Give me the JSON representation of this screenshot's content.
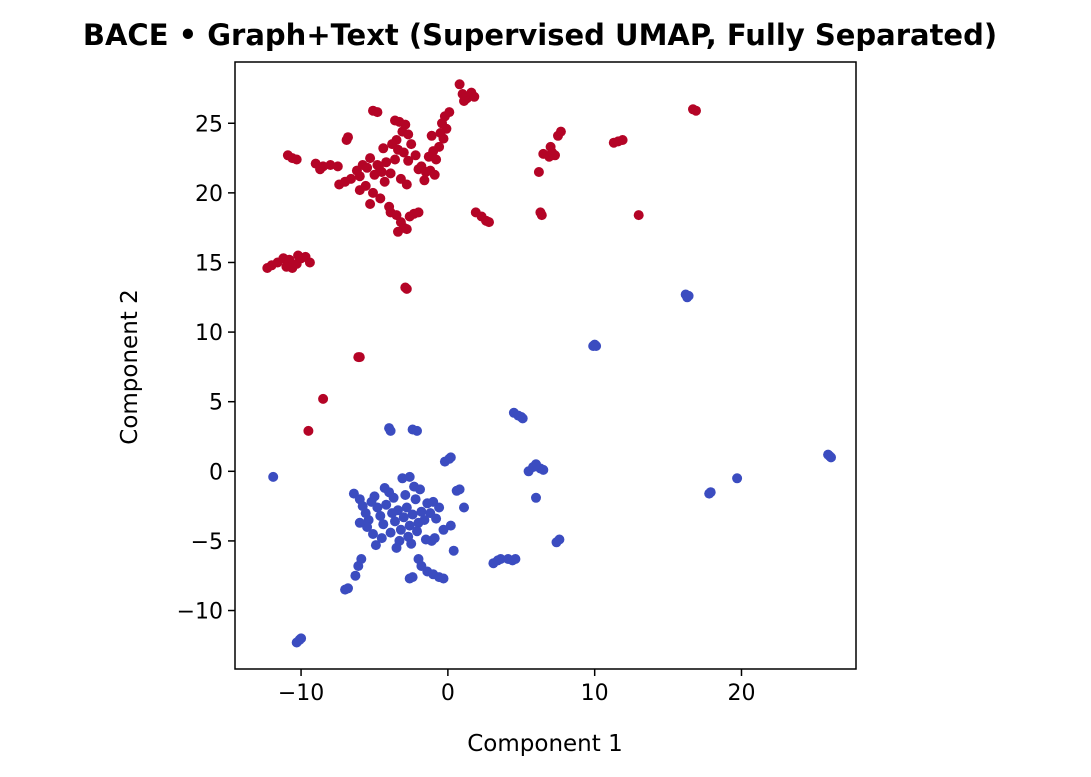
{
  "chart_data": {
    "type": "scatter",
    "title": "BACE • Graph+Text (Supervised UMAP, Fully Separated)",
    "xlabel": "Component 1",
    "ylabel": "Component 2",
    "xlim": [
      -14.5,
      27.8
    ],
    "ylim": [
      -14.2,
      29.4
    ],
    "xticks": [
      -10,
      0,
      10,
      20
    ],
    "xtick_labels": [
      "−10",
      "0",
      "10",
      "20"
    ],
    "yticks": [
      -10,
      -5,
      0,
      5,
      10,
      15,
      20,
      25
    ],
    "ytick_labels": [
      "−10",
      "−5",
      "0",
      "5",
      "10",
      "15",
      "20",
      "25"
    ],
    "grid": false,
    "colormap": "coolwarm",
    "series": [
      {
        "color": "#b40426",
        "points": [
          [
            -12.3,
            14.6
          ],
          [
            -12.0,
            14.8
          ],
          [
            -11.6,
            15.0
          ],
          [
            -11.2,
            15.3
          ],
          [
            -10.8,
            15.2
          ],
          [
            -10.6,
            14.6
          ],
          [
            -10.3,
            14.9
          ],
          [
            -10.0,
            15.3
          ],
          [
            -9.7,
            15.4
          ],
          [
            -9.4,
            15.0
          ],
          [
            -10.2,
            15.5
          ],
          [
            -11.0,
            14.7
          ],
          [
            -10.9,
            22.7
          ],
          [
            -10.6,
            22.5
          ],
          [
            -10.3,
            22.4
          ],
          [
            -9.0,
            22.1
          ],
          [
            -8.5,
            21.9
          ],
          [
            -8.0,
            22.0
          ],
          [
            -7.5,
            21.9
          ],
          [
            -8.7,
            21.7
          ],
          [
            -7.4,
            20.6
          ],
          [
            -7.0,
            20.8
          ],
          [
            -6.6,
            21.0
          ],
          [
            -6.2,
            21.6
          ],
          [
            -5.8,
            22.0
          ],
          [
            -6.0,
            21.2
          ],
          [
            -5.5,
            21.8
          ],
          [
            -5.3,
            22.5
          ],
          [
            -5.0,
            21.3
          ],
          [
            -4.8,
            22.0
          ],
          [
            -4.5,
            21.5
          ],
          [
            -4.2,
            22.2
          ],
          [
            -5.6,
            20.5
          ],
          [
            -5.1,
            20.0
          ],
          [
            -4.6,
            19.6
          ],
          [
            -4.3,
            20.8
          ],
          [
            -3.9,
            21.4
          ],
          [
            -3.6,
            22.4
          ],
          [
            -3.4,
            23.1
          ],
          [
            -3.0,
            22.9
          ],
          [
            -2.7,
            22.3
          ],
          [
            -2.5,
            23.5
          ],
          [
            -2.2,
            22.7
          ],
          [
            -3.2,
            21.0
          ],
          [
            -2.8,
            20.6
          ],
          [
            -4.0,
            19.0
          ],
          [
            -5.3,
            19.2
          ],
          [
            -6.0,
            20.2
          ],
          [
            -4.7,
            21.9
          ],
          [
            -4.4,
            23.2
          ],
          [
            -6.8,
            24.0
          ],
          [
            -6.9,
            23.8
          ],
          [
            -5.1,
            25.9
          ],
          [
            -4.8,
            25.8
          ],
          [
            -3.6,
            25.2
          ],
          [
            -3.3,
            25.1
          ],
          [
            -2.9,
            24.9
          ],
          [
            -3.1,
            24.4
          ],
          [
            -2.7,
            24.2
          ],
          [
            -3.5,
            23.8
          ],
          [
            -3.8,
            23.5
          ],
          [
            -3.9,
            18.6
          ],
          [
            -3.5,
            18.4
          ],
          [
            -3.2,
            17.9
          ],
          [
            -3.0,
            17.5
          ],
          [
            -2.8,
            17.4
          ],
          [
            -2.6,
            18.3
          ],
          [
            -2.3,
            18.5
          ],
          [
            -2.0,
            18.6
          ],
          [
            -3.4,
            17.2
          ],
          [
            -2.0,
            21.7
          ],
          [
            -1.5,
            21.5
          ],
          [
            -1.2,
            21.6
          ],
          [
            -0.9,
            21.3
          ],
          [
            -1.8,
            21.9
          ],
          [
            -1.3,
            22.6
          ],
          [
            -1.0,
            23.0
          ],
          [
            -0.6,
            23.3
          ],
          [
            -0.3,
            23.9
          ],
          [
            -0.1,
            24.6
          ],
          [
            -0.4,
            25.0
          ],
          [
            -0.2,
            25.5
          ],
          [
            0.1,
            25.8
          ],
          [
            -0.5,
            24.3
          ],
          [
            -1.1,
            24.1
          ],
          [
            -0.8,
            22.4
          ],
          [
            -1.6,
            20.9
          ],
          [
            0.8,
            27.8
          ],
          [
            1.0,
            27.1
          ],
          [
            1.3,
            26.8
          ],
          [
            1.6,
            27.2
          ],
          [
            1.8,
            26.9
          ],
          [
            1.1,
            26.6
          ],
          [
            1.9,
            18.6
          ],
          [
            2.3,
            18.3
          ],
          [
            2.6,
            18.0
          ],
          [
            2.8,
            17.9
          ],
          [
            6.2,
            21.5
          ],
          [
            6.3,
            18.6
          ],
          [
            6.4,
            18.4
          ],
          [
            6.5,
            22.8
          ],
          [
            6.9,
            22.6
          ],
          [
            7.1,
            22.9
          ],
          [
            7.3,
            22.7
          ],
          [
            7.0,
            23.3
          ],
          [
            7.5,
            24.1
          ],
          [
            7.7,
            24.4
          ],
          [
            11.3,
            23.6
          ],
          [
            11.6,
            23.7
          ],
          [
            11.9,
            23.8
          ],
          [
            13.0,
            18.4
          ],
          [
            16.7,
            26.0
          ],
          [
            16.9,
            25.9
          ],
          [
            -2.9,
            13.2
          ],
          [
            -2.8,
            13.1
          ],
          [
            -6.1,
            8.2
          ],
          [
            -6.0,
            8.2
          ],
          [
            -8.5,
            5.2
          ],
          [
            -9.5,
            2.9
          ]
        ]
      },
      {
        "color": "#3b4cc0",
        "points": [
          [
            -11.9,
            -0.4
          ],
          [
            -10.3,
            -12.3
          ],
          [
            -10.1,
            -12.1
          ],
          [
            -10.0,
            -12.0
          ],
          [
            -7.0,
            -8.5
          ],
          [
            -6.8,
            -8.4
          ],
          [
            -6.3,
            -7.5
          ],
          [
            -6.1,
            -6.8
          ],
          [
            -5.9,
            -6.3
          ],
          [
            -6.4,
            -1.6
          ],
          [
            -6.0,
            -2.0
          ],
          [
            -5.8,
            -2.5
          ],
          [
            -5.6,
            -3.0
          ],
          [
            -5.4,
            -3.5
          ],
          [
            -5.2,
            -2.2
          ],
          [
            -5.0,
            -1.8
          ],
          [
            -4.8,
            -2.6
          ],
          [
            -4.6,
            -3.2
          ],
          [
            -4.4,
            -3.8
          ],
          [
            -4.2,
            -2.4
          ],
          [
            -4.0,
            -1.5
          ],
          [
            -3.8,
            -3.0
          ],
          [
            -3.6,
            -3.6
          ],
          [
            -3.4,
            -2.8
          ],
          [
            -3.2,
            -4.2
          ],
          [
            -3.0,
            -3.3
          ],
          [
            -2.8,
            -2.6
          ],
          [
            -2.6,
            -3.9
          ],
          [
            -2.4,
            -3.1
          ],
          [
            -2.2,
            -2.0
          ],
          [
            -2.0,
            -3.7
          ],
          [
            -1.8,
            -2.9
          ],
          [
            -1.6,
            -3.5
          ],
          [
            -1.4,
            -2.3
          ],
          [
            -1.2,
            -3.0
          ],
          [
            -1.0,
            -2.2
          ],
          [
            -0.8,
            -3.4
          ],
          [
            -0.6,
            -2.6
          ],
          [
            -5.1,
            -4.5
          ],
          [
            -4.5,
            -4.8
          ],
          [
            -3.9,
            -4.4
          ],
          [
            -3.3,
            -5.0
          ],
          [
            -2.7,
            -4.7
          ],
          [
            -2.1,
            -4.3
          ],
          [
            -5.5,
            -4.0
          ],
          [
            -6.0,
            -3.7
          ],
          [
            -4.9,
            -5.3
          ],
          [
            -3.5,
            -5.5
          ],
          [
            -2.5,
            -5.2
          ],
          [
            -1.5,
            -4.9
          ],
          [
            -3.7,
            -1.9
          ],
          [
            -4.3,
            -1.2
          ],
          [
            -2.9,
            -1.7
          ],
          [
            -2.3,
            -1.1
          ],
          [
            -1.9,
            -1.3
          ],
          [
            -3.1,
            -0.5
          ],
          [
            -2.6,
            -0.4
          ],
          [
            -1.1,
            -5.0
          ],
          [
            -0.9,
            -4.8
          ],
          [
            -0.3,
            -4.2
          ],
          [
            0.2,
            -3.9
          ],
          [
            0.4,
            -5.7
          ],
          [
            0.6,
            -1.4
          ],
          [
            0.8,
            -1.3
          ],
          [
            1.1,
            -2.6
          ],
          [
            -4.0,
            3.1
          ],
          [
            -3.9,
            2.9
          ],
          [
            -2.4,
            3.0
          ],
          [
            -2.1,
            2.9
          ],
          [
            -0.2,
            0.7
          ],
          [
            0.1,
            0.9
          ],
          [
            0.2,
            1.0
          ],
          [
            -2.6,
            -7.7
          ],
          [
            -2.4,
            -7.6
          ],
          [
            -1.8,
            -6.8
          ],
          [
            -1.4,
            -7.2
          ],
          [
            -1.0,
            -7.4
          ],
          [
            -0.6,
            -7.6
          ],
          [
            -0.3,
            -7.7
          ],
          [
            -2.0,
            -6.3
          ],
          [
            3.1,
            -6.6
          ],
          [
            3.4,
            -6.4
          ],
          [
            3.6,
            -6.3
          ],
          [
            4.1,
            -6.3
          ],
          [
            4.4,
            -6.4
          ],
          [
            4.6,
            -6.3
          ],
          [
            4.5,
            4.2
          ],
          [
            4.8,
            4.0
          ],
          [
            5.0,
            3.9
          ],
          [
            5.1,
            3.8
          ],
          [
            5.5,
            0.0
          ],
          [
            5.8,
            0.3
          ],
          [
            6.0,
            0.5
          ],
          [
            6.3,
            0.2
          ],
          [
            6.5,
            0.1
          ],
          [
            6.0,
            -1.9
          ],
          [
            7.4,
            -5.1
          ],
          [
            7.6,
            -4.9
          ],
          [
            9.9,
            9.0
          ],
          [
            10.0,
            9.1
          ],
          [
            10.1,
            9.0
          ],
          [
            16.2,
            12.7
          ],
          [
            16.3,
            12.5
          ],
          [
            16.4,
            12.6
          ],
          [
            17.8,
            -1.6
          ],
          [
            17.9,
            -1.5
          ],
          [
            19.7,
            -0.5
          ],
          [
            25.9,
            1.2
          ],
          [
            26.0,
            1.1
          ],
          [
            26.1,
            1.0
          ]
        ]
      }
    ]
  }
}
